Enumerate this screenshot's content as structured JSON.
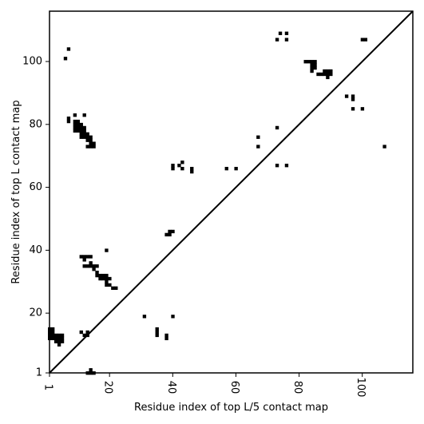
{
  "chart_data": {
    "type": "scatter",
    "title": "",
    "xlabel": "Residue index of top L/5 contact map",
    "ylabel": "Residue index of top L contact map",
    "xlim": [
      1,
      116
    ],
    "ylim": [
      1,
      116
    ],
    "x_ticks": [
      1,
      20,
      40,
      60,
      80,
      100
    ],
    "y_ticks": [
      1,
      20,
      40,
      60,
      80,
      100
    ],
    "diagonal": true,
    "grid": false,
    "legend": "none",
    "marker_color": "#000000",
    "series": [
      {
        "points": [
          [
            1,
            14
          ],
          [
            2,
            14
          ],
          [
            1,
            15
          ],
          [
            2,
            15
          ],
          [
            1,
            13
          ],
          [
            2,
            13
          ],
          [
            3,
            13
          ],
          [
            4,
            13
          ],
          [
            5,
            13
          ],
          [
            1,
            12
          ],
          [
            2,
            12
          ],
          [
            3,
            12
          ],
          [
            4,
            12
          ],
          [
            5,
            12
          ],
          [
            3,
            11
          ],
          [
            4,
            11
          ],
          [
            5,
            11
          ],
          [
            4,
            10
          ],
          [
            6,
            101
          ],
          [
            7,
            104
          ],
          [
            7,
            82
          ],
          [
            7,
            81
          ],
          [
            9,
            83
          ],
          [
            12,
            83
          ],
          [
            9,
            81
          ],
          [
            10,
            81
          ],
          [
            9,
            80
          ],
          [
            10,
            80
          ],
          [
            11,
            80
          ],
          [
            9,
            79
          ],
          [
            10,
            79
          ],
          [
            11,
            79
          ],
          [
            12,
            79
          ],
          [
            9,
            78
          ],
          [
            10,
            78
          ],
          [
            11,
            78
          ],
          [
            12,
            78
          ],
          [
            11,
            77
          ],
          [
            12,
            77
          ],
          [
            13,
            77
          ],
          [
            11,
            76
          ],
          [
            12,
            76
          ],
          [
            13,
            76
          ],
          [
            14,
            76
          ],
          [
            13,
            75
          ],
          [
            14,
            75
          ],
          [
            14,
            74
          ],
          [
            15,
            74
          ],
          [
            13,
            73
          ],
          [
            14,
            73
          ],
          [
            15,
            73
          ],
          [
            11,
            38
          ],
          [
            12,
            38
          ],
          [
            13,
            38
          ],
          [
            14,
            38
          ],
          [
            12,
            37
          ],
          [
            12,
            35
          ],
          [
            13,
            35
          ],
          [
            14,
            35
          ],
          [
            15,
            35
          ],
          [
            16,
            35
          ],
          [
            14,
            36
          ],
          [
            15,
            34
          ],
          [
            16,
            33
          ],
          [
            16,
            32
          ],
          [
            17,
            32
          ],
          [
            18,
            32
          ],
          [
            19,
            32
          ],
          [
            17,
            31
          ],
          [
            18,
            31
          ],
          [
            19,
            31
          ],
          [
            20,
            31
          ],
          [
            19,
            30
          ],
          [
            19,
            29
          ],
          [
            20,
            29
          ],
          [
            21,
            28
          ],
          [
            22,
            28
          ],
          [
            19,
            40
          ],
          [
            11,
            14
          ],
          [
            12,
            13
          ],
          [
            13,
            13
          ],
          [
            13,
            14
          ],
          [
            13,
            1
          ],
          [
            14,
            1
          ],
          [
            15,
            1
          ],
          [
            14,
            2
          ],
          [
            31,
            19
          ],
          [
            35,
            15
          ],
          [
            35,
            14
          ],
          [
            35,
            13
          ],
          [
            38,
            13
          ],
          [
            38,
            12
          ],
          [
            40,
            19
          ],
          [
            38,
            45
          ],
          [
            39,
            45
          ],
          [
            39,
            46
          ],
          [
            40,
            46
          ],
          [
            40,
            67
          ],
          [
            40,
            66
          ],
          [
            42,
            67
          ],
          [
            43,
            68
          ],
          [
            43,
            66
          ],
          [
            46,
            66
          ],
          [
            46,
            65
          ],
          [
            57,
            66
          ],
          [
            60,
            66
          ],
          [
            67,
            76
          ],
          [
            67,
            73
          ],
          [
            73,
            107
          ],
          [
            74,
            109
          ],
          [
            76,
            109
          ],
          [
            76,
            107
          ],
          [
            73,
            79
          ],
          [
            73,
            67
          ],
          [
            76,
            67
          ],
          [
            82,
            100
          ],
          [
            83,
            100
          ],
          [
            84,
            100
          ],
          [
            85,
            100
          ],
          [
            84,
            99
          ],
          [
            85,
            99
          ],
          [
            84,
            98
          ],
          [
            85,
            98
          ],
          [
            84,
            97
          ],
          [
            86,
            96
          ],
          [
            87,
            96
          ],
          [
            88,
            97
          ],
          [
            89,
            97
          ],
          [
            90,
            97
          ],
          [
            88,
            96
          ],
          [
            89,
            96
          ],
          [
            90,
            96
          ],
          [
            89,
            95
          ],
          [
            95,
            89
          ],
          [
            97,
            89
          ],
          [
            97,
            88
          ],
          [
            97,
            85
          ],
          [
            100,
            85
          ],
          [
            100,
            107
          ],
          [
            101,
            107
          ],
          [
            107,
            73
          ]
        ]
      }
    ]
  }
}
